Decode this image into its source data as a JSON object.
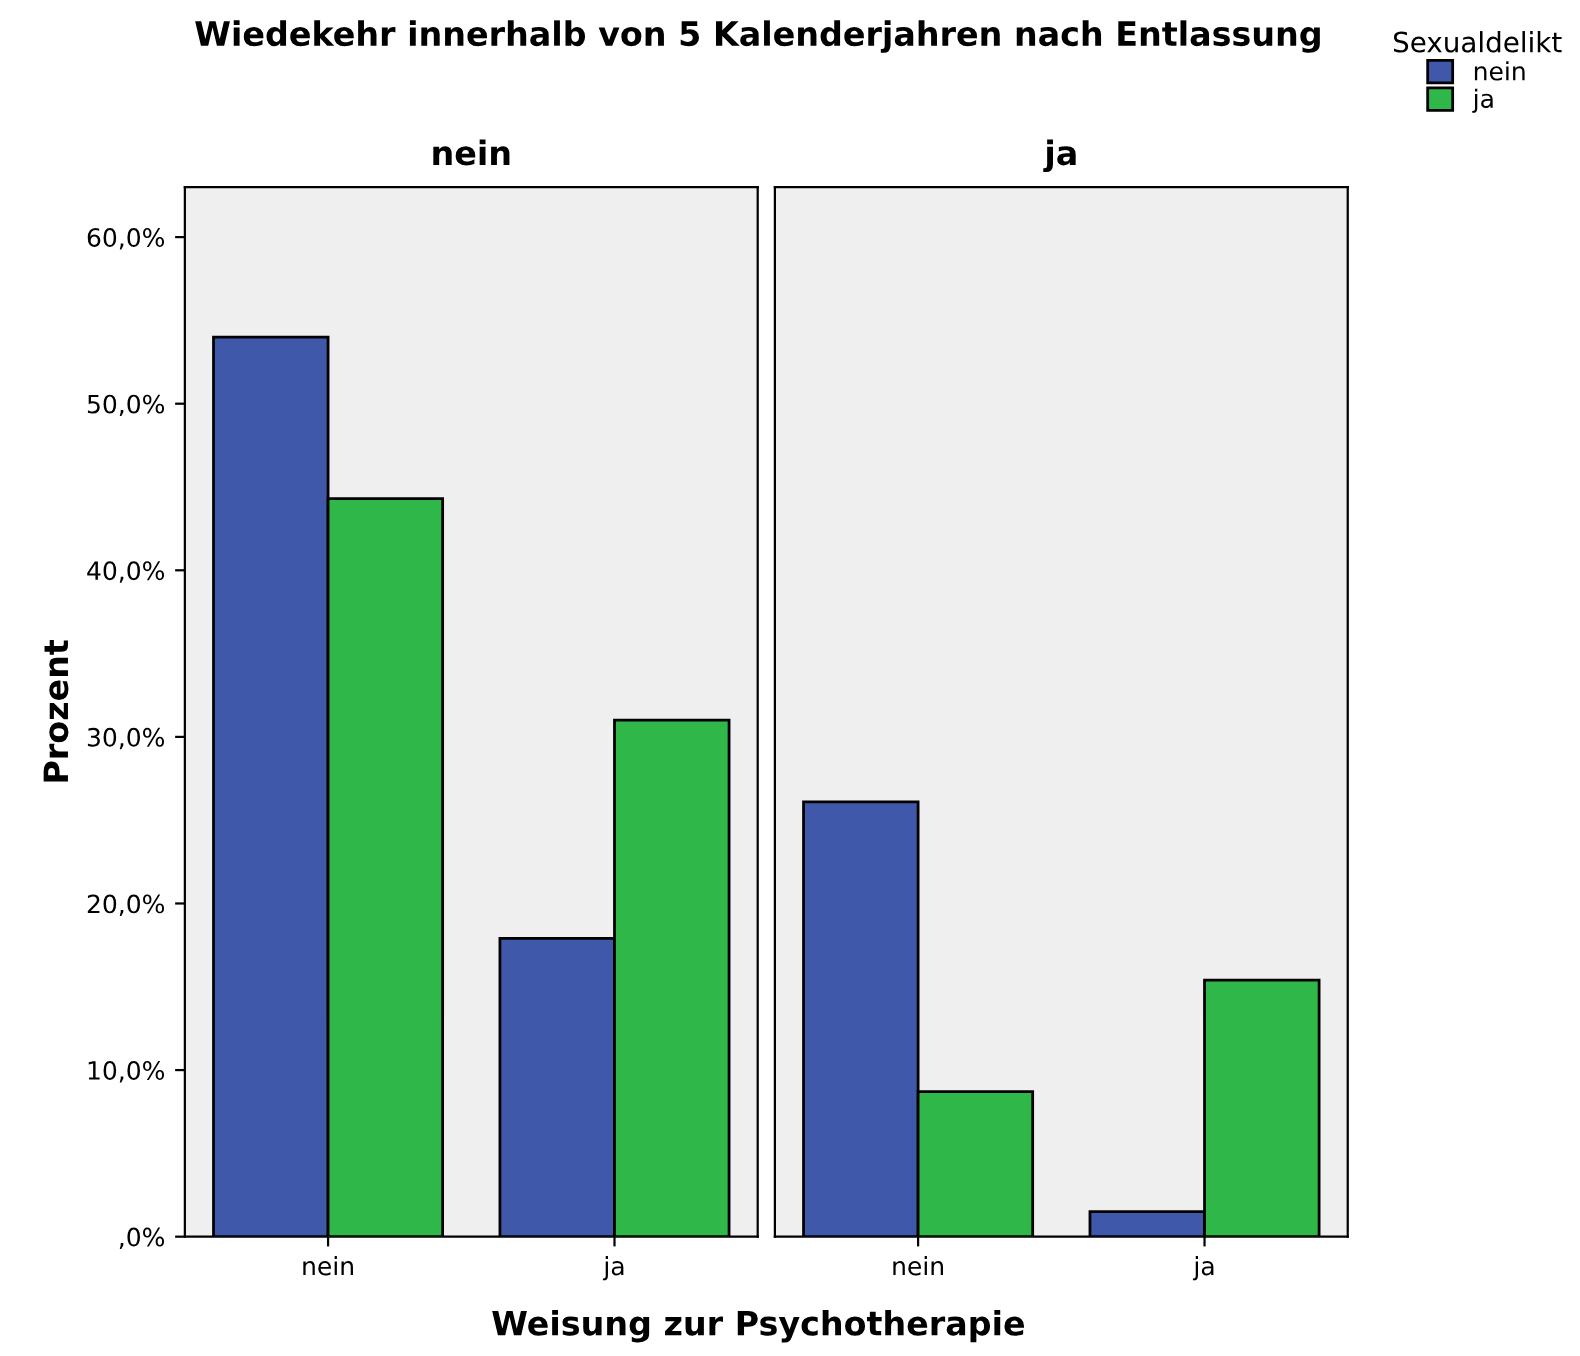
{
  "chart_data": [
    {
      "type": "bar",
      "title": "Wiedekehr innerhalb von 5 Kalenderjahren nach Entlassung",
      "subtitle": "nein",
      "xlabel": "Weisung zur Psychotherapie",
      "ylabel": "Prozent",
      "legend_title": "Sexualdelikt",
      "legend": "top right",
      "grid": false,
      "categories": [
        "nein",
        "ja"
      ],
      "series": [
        {
          "name": "nein",
          "color": "#3f58a9",
          "values": [
            54.0,
            17.9
          ]
        },
        {
          "name": "ja",
          "color": "#30b74a",
          "values": [
            44.3,
            31.0
          ]
        }
      ],
      "ylim": [
        0,
        63
      ],
      "yticks": [
        {
          "value": 0,
          "label": ",0%"
        },
        {
          "value": 10,
          "label": "10,0%"
        },
        {
          "value": 20,
          "label": "20,0%"
        },
        {
          "value": 30,
          "label": "30,0%"
        },
        {
          "value": 40,
          "label": "40,0%"
        },
        {
          "value": 50,
          "label": "50,0%"
        },
        {
          "value": 60,
          "label": "60,0%"
        }
      ]
    },
    {
      "type": "bar",
      "subtitle": "ja",
      "grid": false,
      "tick_labels": "x",
      "categories": [
        "nein",
        "ja"
      ],
      "series": [
        {
          "color": "#3f58a9",
          "values": [
            26.1,
            1.5
          ]
        },
        {
          "color": "#30b74a",
          "values": [
            8.7,
            15.4
          ]
        }
      ],
      "ylim": [
        0,
        63
      ]
    }
  ]
}
